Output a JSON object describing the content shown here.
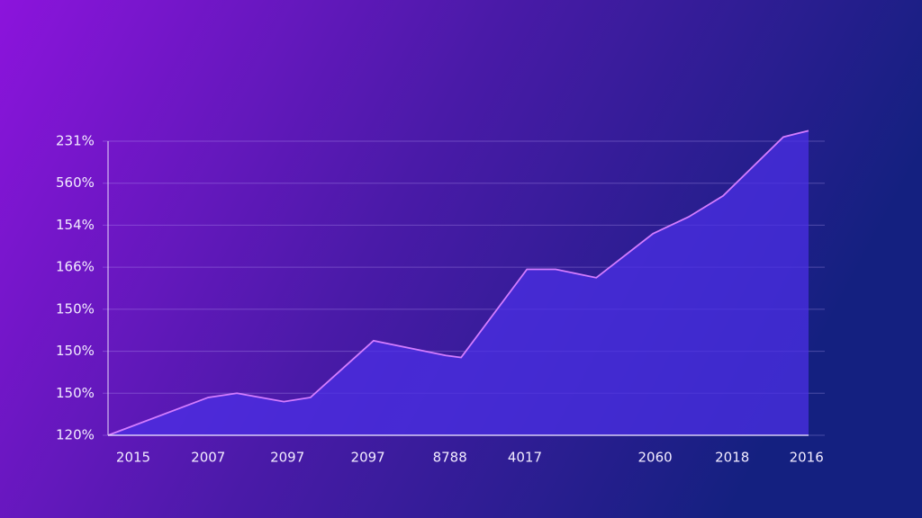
{
  "chart_data": {
    "type": "area",
    "x": [
      0,
      14.3,
      18.4,
      25.1,
      28.9,
      37.9,
      48.2,
      50.4,
      59.8,
      63.9,
      69.7,
      77.8,
      82.9,
      87.8,
      96.4,
      100
    ],
    "values": [
      0,
      0.9,
      1.0,
      0.8,
      0.9,
      2.25,
      1.9,
      1.85,
      3.95,
      3.95,
      3.75,
      4.8,
      5.2,
      5.7,
      7.1,
      7.25
    ],
    "color": "#d47cff",
    "fill": "#4b2fe6",
    "xlim": [
      0,
      100
    ],
    "xticks": [
      {
        "value": 3.6,
        "label": "2015"
      },
      {
        "value": 14.3,
        "label": "2007"
      },
      {
        "value": 25.6,
        "label": "2097"
      },
      {
        "value": 37.1,
        "label": "2097"
      },
      {
        "value": 48.8,
        "label": "8788"
      },
      {
        "value": 59.5,
        "label": "4017"
      },
      {
        "value": 78.1,
        "label": "2060"
      },
      {
        "value": 89.1,
        "label": "2018"
      },
      {
        "value": 99.7,
        "label": "2016"
      }
    ],
    "ylim": [
      0,
      7
    ],
    "yticks": [
      {
        "value": 0,
        "label": "120%"
      },
      {
        "value": 1,
        "label": "150%"
      },
      {
        "value": 2,
        "label": "150%"
      },
      {
        "value": 3,
        "label": "150%"
      },
      {
        "value": 4,
        "label": "166%"
      },
      {
        "value": 5,
        "label": "154%"
      },
      {
        "value": 6,
        "label": "560%"
      },
      {
        "value": 7,
        "label": "231%"
      }
    ],
    "grid": true
  }
}
